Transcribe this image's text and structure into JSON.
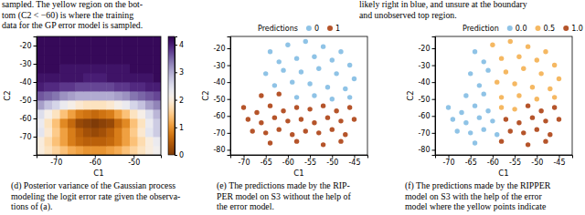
{
  "fragments": [
    {
      "lines": [
        "sampled. The yellow region on the bot-",
        "tom (C2 < −60) is where the training",
        "data for the GP error model is sampled."
      ]
    },
    {
      "lines": [
        "likely right in blue, and unsure at the boundary",
        "and unobserved top region."
      ]
    }
  ],
  "chart_data": [
    {
      "type": "heatmap",
      "x_label": "C1",
      "y_label": "C2",
      "x": [
        -74,
        -72,
        -70,
        -68,
        -66,
        -64,
        -62,
        -60,
        -58,
        -56,
        -54,
        -52,
        -50,
        -48,
        -46,
        -44
      ],
      "y": [
        -77.5,
        -72.5,
        -67.5,
        -62.5,
        -57.5,
        -52.5,
        -47.5,
        -42.5,
        -37.5,
        -32.5,
        -27.5,
        -22.5,
        -17.5
      ],
      "z": [
        [
          2.0,
          1.8,
          1.6,
          1.4,
          1.2,
          1.1,
          1.0,
          1.0,
          1.0,
          1.1,
          1.2,
          1.4,
          1.6,
          1.8,
          2.0,
          2.2
        ],
        [
          2.0,
          1.7,
          1.4,
          1.1,
          0.8,
          0.6,
          0.5,
          0.5,
          0.5,
          0.6,
          0.8,
          1.1,
          1.4,
          1.7,
          2.0,
          2.3
        ],
        [
          2.4,
          1.9,
          1.5,
          1.1,
          0.8,
          0.5,
          0.3,
          0.2,
          0.3,
          0.5,
          0.8,
          1.1,
          1.5,
          1.9,
          2.4,
          2.7
        ],
        [
          2.3,
          1.8,
          1.4,
          0.9,
          0.6,
          0.2,
          0.1,
          0,
          0.1,
          0.2,
          0.6,
          0.9,
          1.4,
          1.8,
          2.3,
          2.7
        ],
        [
          2.5,
          2.1,
          1.8,
          1.4,
          1.1,
          0.8,
          0.7,
          0.6,
          0.7,
          0.8,
          1.1,
          1.4,
          1.8,
          2.1,
          2.5,
          2.9
        ],
        [
          3.1,
          2.8,
          2.6,
          2.3,
          2.1,
          1.9,
          1.8,
          1.8,
          1.8,
          1.9,
          2.1,
          2.3,
          2.6,
          2.8,
          3.1,
          3.3
        ],
        [
          3.6,
          3.5,
          3.4,
          3.2,
          3.1,
          3.0,
          3.0,
          3.0,
          3.0,
          3.0,
          3.1,
          3.2,
          3.4,
          3.5,
          3.6,
          3.7
        ],
        [
          4.0,
          3.9,
          3.9,
          3.8,
          3.8,
          3.7,
          3.7,
          3.7,
          3.7,
          3.7,
          3.8,
          3.8,
          3.9,
          3.9,
          4.0,
          4.0
        ],
        [
          4.1,
          4.1,
          4.1,
          4.1,
          4.1,
          4.1,
          4.0,
          4.0,
          4.0,
          4.1,
          4.1,
          4.1,
          4.1,
          4.1,
          4.1,
          4.2
        ],
        [
          4.2,
          4.2,
          4.2,
          4.1,
          4.1,
          4.1,
          4.1,
          4.1,
          4.1,
          4.1,
          4.1,
          4.1,
          4.2,
          4.2,
          4.2,
          4.2
        ],
        [
          4.2,
          4.2,
          4.2,
          4.2,
          4.2,
          4.2,
          4.2,
          4.2,
          4.2,
          4.2,
          4.2,
          4.2,
          4.2,
          4.2,
          4.2,
          4.2
        ],
        [
          4.2,
          4.2,
          4.2,
          4.2,
          4.2,
          4.2,
          4.2,
          4.2,
          4.2,
          4.2,
          4.2,
          4.2,
          4.2,
          4.2,
          4.2,
          4.2
        ],
        [
          4.2,
          4.2,
          4.2,
          4.2,
          4.2,
          4.2,
          4.2,
          4.2,
          4.2,
          4.2,
          4.2,
          4.2,
          4.2,
          4.2,
          4.2,
          4.2
        ]
      ],
      "xlim": [
        -75,
        -43
      ],
      "ylim": [
        -80,
        -15
      ],
      "xticks": [
        -70,
        -60,
        -50
      ],
      "yticks": [
        -70,
        -60,
        -50,
        -40,
        -30,
        -20
      ],
      "zlim": [
        0,
        4.3
      ],
      "zticks": [
        0,
        1,
        2,
        3,
        4
      ],
      "caption": [
        "(d) Posterior variance of the Gaussian process",
        "modeling the logit error rate given the observa-",
        "tions of (a)."
      ]
    },
    {
      "type": "scatter",
      "x_label": "C1",
      "y_label": "C2",
      "legend_title": "Predictions",
      "legend": "top",
      "marker": "circle",
      "xlim": [
        -73,
        -42
      ],
      "ylim": [
        -83,
        -13
      ],
      "xticks": [
        -70,
        -65,
        -60,
        -55,
        -50,
        -45
      ],
      "yticks": [
        -80,
        -70,
        -60,
        -50,
        -40,
        -30,
        -20
      ],
      "series": [
        {
          "name": "0",
          "color": "#8fc3e6",
          "x": [
            -64,
            -60,
            -56,
            -52,
            -48,
            -62,
            -58,
            -54,
            -50,
            -46,
            -65,
            -61,
            -57,
            -53,
            -49,
            -45,
            -63,
            -59,
            -55,
            -51,
            -47,
            -58,
            -54,
            -50,
            -46
          ],
          "y": [
            -22,
            -18,
            -16,
            -19,
            -22,
            -28,
            -26,
            -25,
            -27,
            -30,
            -35,
            -33,
            -34,
            -32,
            -35,
            -38,
            -42,
            -40,
            -41,
            -43,
            -44,
            -49,
            -48,
            -50,
            -49
          ]
        },
        {
          "name": "1",
          "color": "#b5542a",
          "x": [
            -66,
            -62,
            -70,
            -67,
            -64,
            -61,
            -58,
            -55,
            -52,
            -49,
            -46,
            -69,
            -66,
            -63,
            -60,
            -57,
            -54,
            -51,
            -48,
            -45,
            -68,
            -65,
            -62,
            -59,
            -56,
            -53,
            -50,
            -47,
            -64,
            -58,
            -52,
            -48
          ],
          "y": [
            -48,
            -47,
            -55,
            -58,
            -54,
            -57,
            -55,
            -56,
            -54,
            -57,
            -55,
            -62,
            -64,
            -61,
            -63,
            -62,
            -64,
            -61,
            -63,
            -62,
            -69,
            -70,
            -68,
            -71,
            -69,
            -70,
            -68,
            -71,
            -76,
            -75,
            -77,
            -75
          ]
        }
      ],
      "caption": [
        "(e) The predictions made by the RIP-",
        "PER model on S3 without the help of",
        "the error model."
      ]
    },
    {
      "type": "scatter",
      "x_label": "C1",
      "y_label": "C2",
      "legend_title": "Prediction",
      "legend": "top",
      "marker": "circle",
      "xlim": [
        -73,
        -42
      ],
      "ylim": [
        -83,
        -13
      ],
      "xticks": [
        -70,
        -65,
        -60,
        -55,
        -50,
        -45
      ],
      "yticks": [
        -80,
        -70,
        -60,
        -50,
        -40,
        -30,
        -20
      ],
      "series": [
        {
          "name": "0.0",
          "color": "#8fc3e6",
          "x": [
            -64,
            -62,
            -65,
            -61,
            -63,
            -66,
            -62,
            -70,
            -67,
            -64,
            -61,
            -69,
            -66,
            -63,
            -60,
            -68,
            -65,
            -62,
            -59,
            -64
          ],
          "y": [
            -22,
            -28,
            -35,
            -33,
            -42,
            -48,
            -47,
            -55,
            -58,
            -54,
            -57,
            -62,
            -64,
            -61,
            -63,
            -69,
            -70,
            -68,
            -71,
            -76
          ]
        },
        {
          "name": "0.5",
          "color": "#f5b862",
          "x": [
            -60,
            -56,
            -52,
            -48,
            -58,
            -54,
            -50,
            -46,
            -57,
            -53,
            -49,
            -45,
            -59,
            -55,
            -51,
            -47,
            -58,
            -54,
            -50,
            -46,
            -58,
            -55
          ],
          "y": [
            -18,
            -16,
            -19,
            -22,
            -26,
            -25,
            -27,
            -30,
            -34,
            -32,
            -35,
            -38,
            -40,
            -41,
            -43,
            -44,
            -49,
            -48,
            -50,
            -49,
            -55,
            -56
          ]
        },
        {
          "name": "1.0",
          "color": "#b5542a",
          "x": [
            -52,
            -49,
            -46,
            -57,
            -54,
            -51,
            -48,
            -45,
            -56,
            -53,
            -50,
            -47,
            -58,
            -52,
            -48
          ],
          "y": [
            -54,
            -57,
            -55,
            -62,
            -64,
            -61,
            -63,
            -62,
            -69,
            -70,
            -68,
            -71,
            -75,
            -77,
            -75
          ]
        }
      ],
      "caption": [
        "(f) The predictions made by the RIPPER",
        "model on S3 with the help of the error",
        "model where the yellow points indicate"
      ]
    }
  ]
}
